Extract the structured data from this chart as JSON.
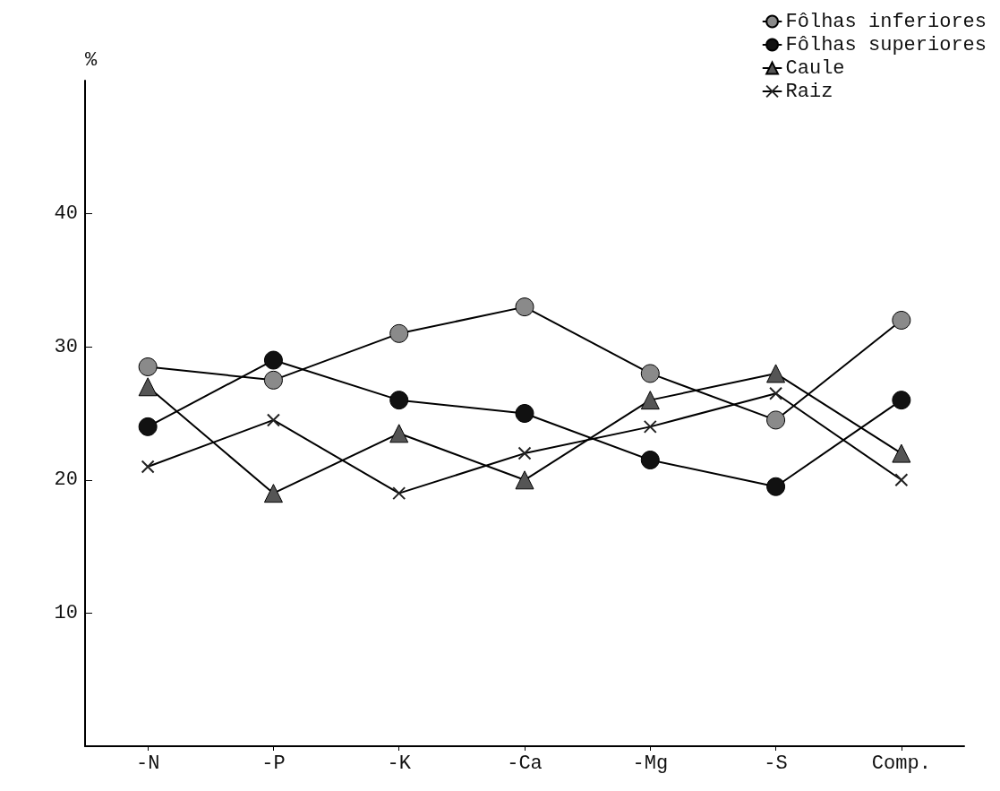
{
  "chart_data": {
    "type": "line",
    "ylabel": "%",
    "categories": [
      "-N",
      "-P",
      "-K",
      "-Ca",
      "-Mg",
      "-S",
      "Comp."
    ],
    "series": [
      {
        "name": "Fôlhas inferiores",
        "color": "#8a8a8a",
        "marker": "circle",
        "values": [
          28.5,
          27.5,
          31,
          33,
          28,
          24.5,
          32
        ]
      },
      {
        "name": "Fôlhas superiores",
        "color": "#111111",
        "marker": "circle",
        "values": [
          24,
          29,
          26,
          25,
          21.5,
          19.5,
          26
        ]
      },
      {
        "name": "Caule",
        "color": "#555555",
        "marker": "triangle",
        "values": [
          27,
          19,
          23.5,
          20,
          26,
          28,
          22
        ]
      },
      {
        "name": "Raiz",
        "color": "#222222",
        "marker": "cross",
        "values": [
          21,
          24.5,
          19,
          22,
          24,
          26.5,
          20
        ]
      }
    ],
    "ylim": [
      0,
      50
    ],
    "yticks": [
      {
        "value": 0,
        "label": null
      },
      10,
      20,
      30,
      40
    ],
    "grid": false,
    "legend": "top right",
    "line_style": "solid"
  }
}
